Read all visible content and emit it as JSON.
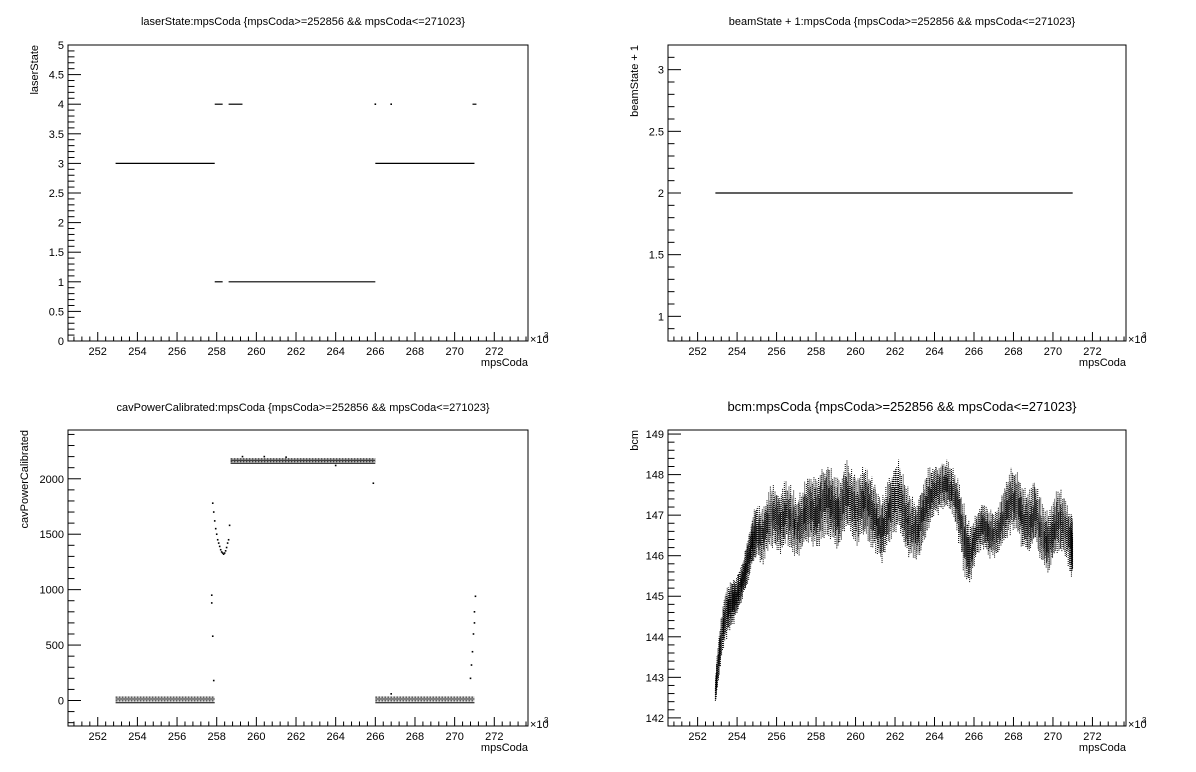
{
  "chart_data": [
    {
      "type": "scatter",
      "title": "laserState:mpsCoda {mpsCoda>=252856 && mpsCoda<=271023}",
      "xlabel": "mpsCoda",
      "ylabel": "laserState",
      "x_exponent_label": "×10",
      "x_exponent_power": "3",
      "xlim": [
        250.5,
        273.7
      ],
      "ylim": [
        0,
        5
      ],
      "x_ticks": [
        "252",
        "254",
        "256",
        "258",
        "260",
        "262",
        "264",
        "266",
        "268",
        "270",
        "272"
      ],
      "y_ticks": [
        "0",
        "0.5",
        "1",
        "1.5",
        "2",
        "2.5",
        "3",
        "3.5",
        "4",
        "4.5",
        "5"
      ],
      "segments": [
        {
          "x": [
            252.9,
            257.9
          ],
          "y": 3
        },
        {
          "x": [
            257.9,
            258.3
          ],
          "y": 4
        },
        {
          "x": [
            258.6,
            259.3
          ],
          "y": 4
        },
        {
          "x": [
            257.9,
            258.3
          ],
          "y": 1
        },
        {
          "x": [
            258.6,
            266.0
          ],
          "y": 1
        },
        {
          "x": [
            266.0,
            271.0
          ],
          "y": 3
        },
        {
          "x": [
            270.9,
            271.1
          ],
          "y": 4
        }
      ],
      "points": [
        {
          "x": 266.0,
          "y": 4
        },
        {
          "x": 266.8,
          "y": 4
        }
      ],
      "grid": false
    },
    {
      "type": "scatter",
      "title": "beamState + 1:mpsCoda {mpsCoda>=252856 && mpsCoda<=271023}",
      "xlabel": "mpsCoda",
      "ylabel": "beamState + 1",
      "x_exponent_label": "×10",
      "x_exponent_power": "3",
      "xlim": [
        250.5,
        273.7
      ],
      "ylim": [
        0.8,
        3.2
      ],
      "x_ticks": [
        "252",
        "254",
        "256",
        "258",
        "260",
        "262",
        "264",
        "266",
        "268",
        "270",
        "272"
      ],
      "y_ticks": [
        "1",
        "1.5",
        "2",
        "2.5",
        "3"
      ],
      "y_tick_values": [
        1,
        1.5,
        2,
        2.5,
        3
      ],
      "segments": [
        {
          "x": [
            252.9,
            271.0
          ],
          "y": 2
        }
      ],
      "grid": false
    },
    {
      "type": "scatter",
      "title": "cavPowerCalibrated:mpsCoda {mpsCoda>=252856 && mpsCoda<=271023}",
      "xlabel": "mpsCoda",
      "ylabel": "cavPowerCalibrated",
      "x_exponent_label": "×10",
      "x_exponent_power": "3",
      "xlim": [
        250.5,
        273.7
      ],
      "ylim": [
        -230,
        2440
      ],
      "x_ticks": [
        "252",
        "254",
        "256",
        "258",
        "260",
        "262",
        "264",
        "266",
        "268",
        "270",
        "272"
      ],
      "y_ticks": [
        "0",
        "500",
        "1000",
        "1500",
        "2000"
      ],
      "y_tick_values": [
        0,
        500,
        1000,
        1500,
        2000
      ],
      "bands": [
        {
          "x": [
            252.9,
            257.9
          ],
          "y": [
            -20,
            30
          ],
          "lines": 4
        },
        {
          "x": [
            258.7,
            266.0
          ],
          "y": [
            2140,
            2180
          ],
          "lines": 4
        },
        {
          "x": [
            266.0,
            271.0
          ],
          "y": [
            -20,
            30
          ],
          "lines": 4
        }
      ],
      "points": [
        {
          "x": 257.8,
          "y": 1780
        },
        {
          "x": 257.85,
          "y": 1700
        },
        {
          "x": 257.9,
          "y": 1620
        },
        {
          "x": 257.95,
          "y": 1550
        },
        {
          "x": 258.0,
          "y": 1500
        },
        {
          "x": 258.05,
          "y": 1450
        },
        {
          "x": 258.1,
          "y": 1420
        },
        {
          "x": 258.15,
          "y": 1390
        },
        {
          "x": 258.2,
          "y": 1360
        },
        {
          "x": 258.25,
          "y": 1340
        },
        {
          "x": 258.3,
          "y": 1330
        },
        {
          "x": 258.35,
          "y": 1320
        },
        {
          "x": 258.4,
          "y": 1330
        },
        {
          "x": 258.45,
          "y": 1350
        },
        {
          "x": 258.5,
          "y": 1380
        },
        {
          "x": 258.55,
          "y": 1420
        },
        {
          "x": 258.6,
          "y": 1450
        },
        {
          "x": 258.65,
          "y": 1580
        },
        {
          "x": 257.75,
          "y": 950
        },
        {
          "x": 257.75,
          "y": 880
        },
        {
          "x": 257.8,
          "y": 580
        },
        {
          "x": 257.85,
          "y": 180
        },
        {
          "x": 259.3,
          "y": 2200
        },
        {
          "x": 260.4,
          "y": 2200
        },
        {
          "x": 261.5,
          "y": 2195
        },
        {
          "x": 264.0,
          "y": 2120
        },
        {
          "x": 265.9,
          "y": 1960
        },
        {
          "x": 270.8,
          "y": 200
        },
        {
          "x": 270.85,
          "y": 320
        },
        {
          "x": 270.9,
          "y": 440
        },
        {
          "x": 270.95,
          "y": 600
        },
        {
          "x": 271.0,
          "y": 700
        },
        {
          "x": 271.0,
          "y": 800
        },
        {
          "x": 271.05,
          "y": 940
        },
        {
          "x": 266.8,
          "y": 60
        }
      ],
      "grid": false
    },
    {
      "type": "scatter",
      "title": "bcm:mpsCoda {mpsCoda>=252856 && mpsCoda<=271023}",
      "xlabel": "mpsCoda",
      "ylabel": "bcm",
      "x_exponent_label": "×10",
      "x_exponent_power": "3",
      "xlim": [
        250.5,
        273.7
      ],
      "ylim": [
        141.8,
        149.1
      ],
      "x_ticks": [
        "252",
        "254",
        "256",
        "258",
        "260",
        "262",
        "264",
        "266",
        "268",
        "270",
        "272"
      ],
      "y_ticks": [
        "142",
        "143",
        "144",
        "145",
        "146",
        "147",
        "148",
        "149"
      ],
      "y_tick_values": [
        142,
        143,
        144,
        145,
        146,
        147,
        148,
        149
      ],
      "trace_x": [
        252.9,
        253.0,
        253.2,
        253.4,
        253.6,
        253.8,
        254.0,
        254.2,
        254.4,
        254.6,
        254.8,
        255.0,
        255.3,
        255.6,
        255.9,
        256.2,
        256.5,
        256.8,
        257.1,
        257.4,
        257.7,
        258.0,
        258.3,
        258.6,
        258.9,
        259.2,
        259.5,
        259.8,
        260.1,
        260.4,
        260.7,
        261.0,
        261.3,
        261.6,
        261.9,
        262.2,
        262.5,
        262.8,
        263.1,
        263.4,
        263.7,
        264.0,
        264.3,
        264.6,
        264.9,
        265.2,
        265.5,
        265.8,
        266.1,
        266.4,
        266.7,
        267.0,
        267.3,
        267.6,
        267.9,
        268.2,
        268.5,
        268.8,
        269.1,
        269.4,
        269.7,
        270.0,
        270.3,
        270.6,
        270.9,
        271.0
      ],
      "trace_y": [
        142.6,
        143.2,
        144.0,
        144.5,
        144.7,
        144.9,
        145.0,
        145.3,
        145.6,
        146.0,
        146.4,
        146.6,
        146.5,
        146.9,
        147.0,
        146.8,
        147.1,
        146.9,
        146.7,
        147.0,
        147.2,
        147.0,
        147.3,
        147.4,
        147.2,
        147.0,
        147.5,
        147.3,
        147.1,
        147.4,
        147.2,
        146.9,
        146.6,
        147.0,
        147.3,
        147.5,
        147.0,
        146.7,
        146.6,
        147.0,
        147.4,
        147.6,
        147.7,
        147.8,
        147.6,
        147.2,
        146.4,
        146.0,
        146.5,
        146.8,
        146.6,
        146.5,
        146.7,
        147.1,
        147.4,
        147.3,
        146.9,
        146.8,
        147.1,
        146.6,
        146.3,
        146.6,
        146.9,
        146.7,
        146.3,
        146.2
      ],
      "trace_spread": [
        0.3,
        0.5,
        0.6,
        0.6,
        0.6,
        0.6,
        0.5,
        0.5,
        0.5,
        0.6,
        0.6,
        0.7,
        0.7,
        0.8,
        0.8,
        0.8,
        0.8,
        0.8,
        0.8,
        0.8,
        0.9,
        0.9,
        0.9,
        0.9,
        0.9,
        0.9,
        0.9,
        0.9,
        0.9,
        0.9,
        0.9,
        0.9,
        0.8,
        0.8,
        0.9,
        0.9,
        0.9,
        0.8,
        0.8,
        0.8,
        0.8,
        0.7,
        0.6,
        0.6,
        0.6,
        0.8,
        0.9,
        0.8,
        0.6,
        0.6,
        0.6,
        0.6,
        0.6,
        0.8,
        0.8,
        0.8,
        0.8,
        0.8,
        0.8,
        0.8,
        0.8,
        0.8,
        0.8,
        0.8,
        0.8,
        0.7
      ],
      "grid": false
    }
  ]
}
